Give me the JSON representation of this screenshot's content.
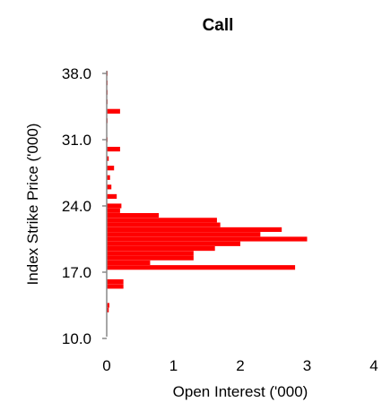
{
  "chart_data": {
    "type": "bar",
    "orientation": "horizontal",
    "title": "Call",
    "xlabel": "Open Interest ('000)",
    "ylabel": "Index Strike Price ('000)",
    "xlim": [
      0,
      4
    ],
    "ylim": [
      10.0,
      38.0
    ],
    "x_ticks": [
      "0",
      "1",
      "2",
      "3",
      "4"
    ],
    "y_ticks": [
      "10.0",
      "17.0",
      "24.0",
      "31.0",
      "38.0"
    ],
    "bar_color": "#ff0000",
    "grid": false,
    "series": [
      {
        "strikes": [
          13.0,
          13.5,
          15.5,
          16.0,
          17.5,
          18.0,
          18.5,
          19.0,
          19.5,
          20.0,
          20.5,
          21.0,
          21.5,
          22.0,
          22.5,
          23.0,
          23.5,
          24.0,
          25.0,
          26.0,
          27.0,
          28.0,
          29.0,
          30.0,
          31.0,
          33.0,
          34.0,
          35.0,
          36.0,
          37.0,
          38.0
        ],
        "values": [
          0.03,
          0.04,
          0.25,
          0.25,
          2.82,
          0.65,
          1.3,
          1.3,
          1.62,
          2.0,
          3.0,
          2.3,
          2.62,
          1.7,
          1.65,
          0.78,
          0.2,
          0.22,
          0.15,
          0.07,
          0.05,
          0.11,
          0.03,
          0.2,
          0.01,
          0.01,
          0.2,
          0.01,
          0.01,
          0.01,
          0.01
        ]
      }
    ]
  }
}
